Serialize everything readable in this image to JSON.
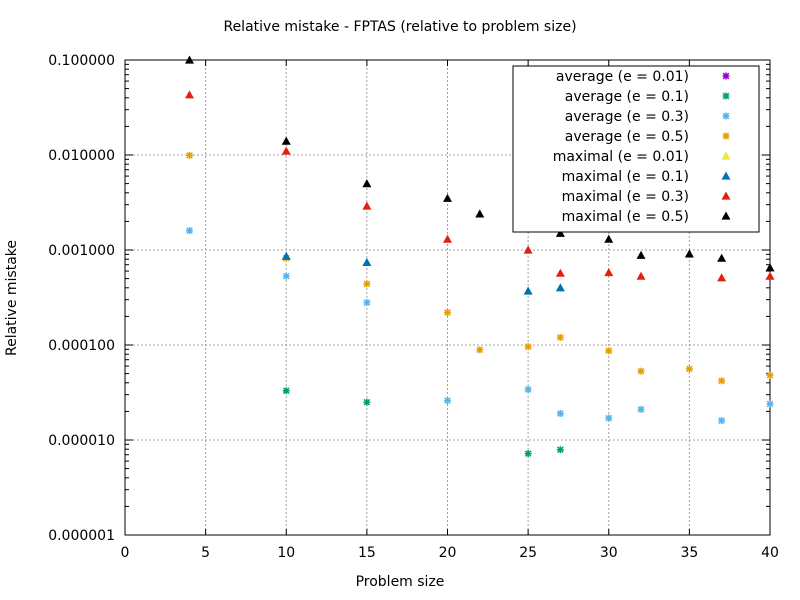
{
  "chart_data": {
    "type": "scatter",
    "title": "Relative mistake - FPTAS (relative to problem size)",
    "xlabel": "Problem size",
    "ylabel": "Relative mistake",
    "xlim": [
      0,
      40
    ],
    "ylim": [
      1e-06,
      0.1
    ],
    "yscale": "log",
    "grid": true,
    "legend_position": "top-right",
    "xticks": [
      0,
      5,
      10,
      15,
      20,
      25,
      30,
      35,
      40
    ],
    "xtick_labels": [
      "0",
      "5",
      "10",
      "15",
      "20",
      "25",
      "30",
      "35",
      "40"
    ],
    "yticks": [
      1e-06,
      1e-05,
      0.0001,
      0.001,
      0.01,
      0.1
    ],
    "ytick_labels": [
      "0.000001",
      "0.000010",
      "0.000100",
      "0.001000",
      "0.010000",
      "0.100000"
    ],
    "series": [
      {
        "name": "average (e = 0.01)",
        "marker": "star",
        "color": "#9400d3",
        "points": []
      },
      {
        "name": "average (e = 0.1)",
        "marker": "star",
        "color": "#009e73",
        "points": [
          [
            10,
            3.3e-05
          ],
          [
            15,
            2.5e-05
          ],
          [
            25,
            7.2e-06
          ],
          [
            27,
            7.9e-06
          ]
        ]
      },
      {
        "name": "average (e = 0.3)",
        "marker": "star",
        "color": "#56b4e9",
        "points": [
          [
            4,
            0.0016
          ],
          [
            10,
            0.00053
          ],
          [
            15,
            0.00028
          ],
          [
            20,
            2.6e-05
          ],
          [
            25,
            3.4e-05
          ],
          [
            27,
            1.9e-05
          ],
          [
            30,
            1.7e-05
          ],
          [
            32,
            2.1e-05
          ],
          [
            37,
            1.6e-05
          ],
          [
            40,
            2.4e-05
          ]
        ]
      },
      {
        "name": "average (e = 0.5)",
        "marker": "star",
        "color": "#e69f00",
        "points": [
          [
            4,
            0.0099
          ],
          [
            10,
            0.00082
          ],
          [
            15,
            0.00044
          ],
          [
            20,
            0.00022
          ],
          [
            22,
            8.9e-05
          ],
          [
            25,
            9.6e-05
          ],
          [
            27,
            0.00012
          ],
          [
            30,
            8.7e-05
          ],
          [
            32,
            5.3e-05
          ],
          [
            35,
            5.6e-05
          ],
          [
            37,
            4.2e-05
          ],
          [
            40,
            4.8e-05
          ]
        ]
      },
      {
        "name": "maximal (e = 0.01)",
        "marker": "triangle",
        "color": "#f0e442",
        "points": []
      },
      {
        "name": "maximal (e = 0.1)",
        "marker": "triangle",
        "color": "#0072b2",
        "points": [
          [
            10,
            0.00086
          ],
          [
            15,
            0.00074
          ],
          [
            25,
            0.00037
          ],
          [
            27,
            0.0004
          ]
        ]
      },
      {
        "name": "maximal (e = 0.3)",
        "marker": "triangle",
        "color": "#e51e10",
        "points": [
          [
            4,
            0.043
          ],
          [
            10,
            0.011
          ],
          [
            15,
            0.0029
          ],
          [
            20,
            0.0013
          ],
          [
            25,
            0.001
          ],
          [
            27,
            0.00057
          ],
          [
            30,
            0.00058
          ],
          [
            32,
            0.00053
          ],
          [
            37,
            0.00051
          ],
          [
            40,
            0.00053
          ]
        ]
      },
      {
        "name": "maximal (e = 0.5)",
        "marker": "triangle",
        "color": "#000000",
        "points": [
          [
            4,
            0.1
          ],
          [
            10,
            0.014
          ],
          [
            15,
            0.005
          ],
          [
            20,
            0.0035
          ],
          [
            22,
            0.0024
          ],
          [
            25,
            0.0019
          ],
          [
            27,
            0.0015
          ],
          [
            30,
            0.0013
          ],
          [
            32,
            0.00088
          ],
          [
            35,
            0.00091
          ],
          [
            37,
            0.00082
          ],
          [
            40,
            0.00065
          ]
        ]
      }
    ]
  }
}
